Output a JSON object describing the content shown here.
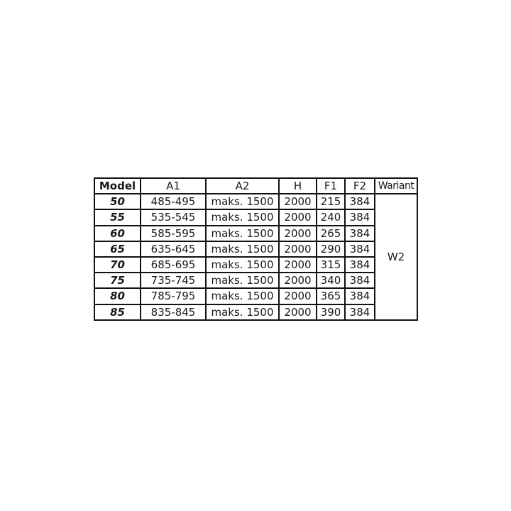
{
  "table": {
    "headers": [
      "Model",
      "A1",
      "A2",
      "H",
      "F1",
      "F2",
      "Wariant"
    ],
    "rows": [
      [
        "50",
        "485-495",
        "maks. 1500",
        "2000",
        "215",
        "384"
      ],
      [
        "55",
        "535-545",
        "maks. 1500",
        "2000",
        "240",
        "384"
      ],
      [
        "60",
        "585-595",
        "maks. 1500",
        "2000",
        "265",
        "384"
      ],
      [
        "65",
        "635-645",
        "maks. 1500",
        "2000",
        "290",
        "384"
      ],
      [
        "70",
        "685-695",
        "maks. 1500",
        "2000",
        "315",
        "384"
      ],
      [
        "75",
        "735-745",
        "maks. 1500",
        "2000",
        "340",
        "384"
      ],
      [
        "80",
        "785-795",
        "maks. 1500",
        "2000",
        "365",
        "384"
      ],
      [
        "85",
        "835-845",
        "maks. 1500",
        "2000",
        "390",
        "384"
      ]
    ],
    "variant": "W2"
  }
}
